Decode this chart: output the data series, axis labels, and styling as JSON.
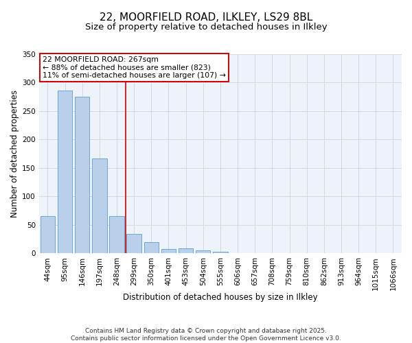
{
  "title": "22, MOORFIELD ROAD, ILKLEY, LS29 8BL",
  "subtitle": "Size of property relative to detached houses in Ilkley",
  "xlabel": "Distribution of detached houses by size in Ilkley",
  "ylabel": "Number of detached properties",
  "all_labels": [
    "44sqm",
    "95sqm",
    "146sqm",
    "197sqm",
    "248sqm",
    "299sqm",
    "350sqm",
    "401sqm",
    "453sqm",
    "504sqm",
    "555sqm",
    "606sqm",
    "657sqm",
    "708sqm",
    "759sqm",
    "810sqm",
    "862sqm",
    "913sqm",
    "964sqm",
    "1015sqm",
    "1066sqm"
  ],
  "all_values": [
    65,
    286,
    275,
    167,
    65,
    34,
    20,
    8,
    9,
    5,
    3,
    1,
    1,
    0,
    0,
    0,
    0,
    0,
    0,
    0,
    0
  ],
  "bar_color": "#b8d0ea",
  "bar_edge_color": "#5b9bd5",
  "vline_x": 4.52,
  "vline_color": "#cc0000",
  "annotation_title": "22 MOORFIELD ROAD: 267sqm",
  "annotation_line1": "← 88% of detached houses are smaller (823)",
  "annotation_line2": "11% of semi-detached houses are larger (107) →",
  "annotation_box_color": "#ffffff",
  "annotation_box_edge": "#cc0000",
  "ylim": [
    0,
    350
  ],
  "yticks": [
    0,
    50,
    100,
    150,
    200,
    250,
    300,
    350
  ],
  "footnote1": "Contains HM Land Registry data © Crown copyright and database right 2025.",
  "footnote2": "Contains public sector information licensed under the Open Government Licence v3.0.",
  "bg_color": "#eef2f9",
  "grid_color": "#c5cfe0",
  "title_fontsize": 11,
  "subtitle_fontsize": 9.5,
  "axis_label_fontsize": 8.5,
  "tick_label_fontsize": 7.5,
  "annotation_fontsize": 7.8,
  "footnote_fontsize": 6.5
}
